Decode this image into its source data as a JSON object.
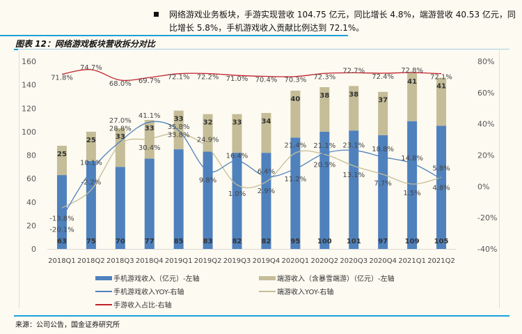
{
  "header": {
    "bullet_text": "网络游戏业务板块，手游实现营收 104.75 亿元，同比增长 4.8%，端游营收 40.53 亿元，同比增长 5.8%，手机游戏收入贡献比例达到 72.1%。",
    "figure_title": "图表 12：网络游戏板块营收拆分对比"
  },
  "footer": {
    "source": "来源：公司公告，国金证券研究所"
  },
  "colors": {
    "mobile_bar": "#4f81bd",
    "pc_bar": "#c4bd97",
    "mobile_yoy_line": "#4f81bd",
    "pc_yoy_line": "#c4bd97",
    "mobile_share_line": "#c0202c",
    "rule": "#1aa0dc"
  },
  "chart_data": {
    "type": "bar",
    "stacked": true,
    "title": "网络游戏板块营收拆分对比",
    "categories": [
      "2018Q1",
      "2018Q2",
      "2018Q3",
      "2018Q4",
      "2019Q1",
      "2019Q2",
      "2019Q3",
      "2019Q4",
      "2020Q1",
      "2020Q2",
      "2020Q3",
      "2020Q4",
      "2021Q1",
      "2021Q2"
    ],
    "left_axis": {
      "ylim": [
        0,
        160
      ],
      "ticks": [
        0,
        20,
        40,
        60,
        80,
        100,
        120,
        140,
        160
      ]
    },
    "right_axis": {
      "ylim": [
        -40,
        80
      ],
      "ticks": [
        "-40%",
        "-20%",
        "0%",
        "20%",
        "40%",
        "60%",
        "80%"
      ],
      "tick_values": [
        -40,
        -20,
        0,
        20,
        40,
        60,
        80
      ]
    },
    "grid": false,
    "legend_position": "bottom",
    "series": [
      {
        "name": "手机游戏收入（亿元）-左轴",
        "type": "bar",
        "axis": "left",
        "values": [
          63,
          75,
          70,
          77,
          85,
          83,
          82,
          82,
          95,
          100,
          101,
          97,
          109,
          105
        ],
        "labels": [
          "63",
          "75",
          "70",
          "77",
          "85",
          "83",
          "82",
          "82",
          "95",
          "100",
          "101",
          "97",
          "109",
          "105"
        ]
      },
      {
        "name": "端游收入（含暴雪端游）（亿元）-左轴",
        "type": "bar",
        "axis": "left",
        "values": [
          25,
          25,
          33,
          33,
          33,
          32,
          33,
          34,
          40,
          38,
          38,
          37,
          41,
          41
        ],
        "labels": [
          "25",
          "25",
          "33",
          "33",
          "33",
          "32",
          "33",
          "34",
          "40",
          "38",
          "38",
          "37",
          "41",
          "41"
        ]
      },
      {
        "name": "手机游戏收入YOY-右轴",
        "type": "line",
        "axis": "right",
        "values": [
          -20.1,
          10.1,
          28.8,
          41.1,
          35.8,
          9.8,
          16.4,
          6.4,
          11.2,
          21.1,
          23.1,
          18.8,
          14.8,
          4.8
        ],
        "labels": [
          "-20.1%",
          "10.1%",
          "28.8%",
          "41.1%",
          "35.8%",
          "9.8%",
          "16.4%",
          "6.4%",
          "11.2%",
          "21.1%",
          "23.1%",
          "18.8%",
          "14.8%",
          "4.8%"
        ]
      },
      {
        "name": "端游收入YOY-右轴",
        "type": "line",
        "axis": "right",
        "values": [
          -13.8,
          -2.2,
          27.0,
          30.4,
          33.8,
          24.9,
          1.0,
          2.9,
          21.4,
          20.5,
          13.1,
          7.7,
          1.5,
          5.8
        ],
        "labels": [
          "-13.8%",
          "-2.2%",
          "27.0%",
          "30.4%",
          "33.8%",
          "24.9%",
          "1.0%",
          "2.9%",
          "21.4%",
          "20.5%",
          "13.1%",
          "7.7%",
          "1.5%",
          "5.8%"
        ]
      },
      {
        "name": "手游收入占比-右轴",
        "type": "line",
        "axis": "right",
        "values": [
          71.8,
          74.7,
          68.0,
          69.7,
          72.1,
          72.2,
          71.0,
          70.4,
          70.3,
          72.3,
          72.7,
          72.4,
          72.8,
          72.1
        ],
        "labels": [
          "71.8%",
          "74.7%",
          "68.0%",
          "69.7%",
          "72.1%",
          "72.2%",
          "71.0%",
          "70.4%",
          "70.3%",
          "72.3%",
          "72.7%",
          "72.4%",
          "72.8%",
          "72.1%"
        ]
      }
    ]
  }
}
